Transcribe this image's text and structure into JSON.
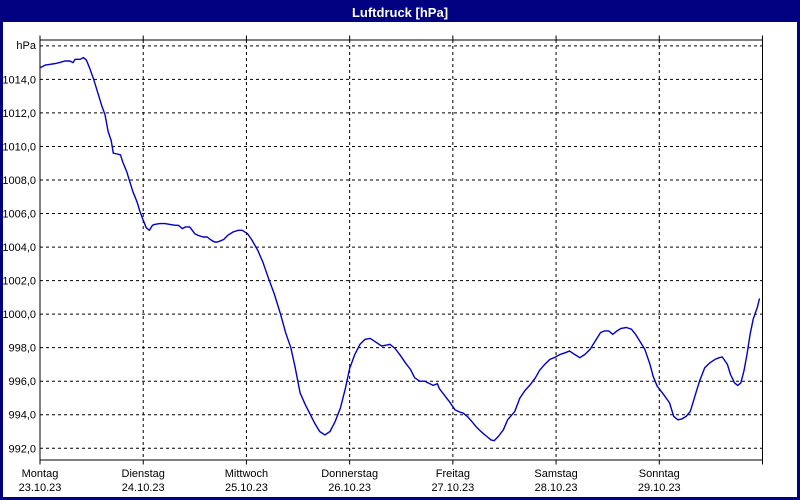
{
  "title": "Luftdruck [hPa]",
  "colors": {
    "title_bg": "#000080",
    "title_fg": "#ffffff",
    "page_border": "#000080",
    "background": "#ffffff",
    "grid": "#000000",
    "axis": "#000000",
    "line": "#0000cc",
    "text": "#000000"
  },
  "y_axis": {
    "unit_label": "hPa",
    "tick_labels": [
      "1014,0",
      "1012,0",
      "1010,0",
      "1008,0",
      "1006,0",
      "1004,0",
      "1002,0",
      "1000,0",
      "998,0",
      "996,0",
      "994,0",
      "992,0"
    ],
    "tick_values": [
      1014,
      1012,
      1010,
      1008,
      1006,
      1004,
      1002,
      1000,
      998,
      996,
      994,
      992
    ],
    "gridline_values": [
      1016,
      1014,
      1012,
      1010,
      1008,
      1006,
      1004,
      1002,
      1000,
      998,
      996,
      994,
      992
    ]
  },
  "x_axis": {
    "days": [
      {
        "name": "Montag",
        "date": "23.10.23"
      },
      {
        "name": "Dienstag",
        "date": "24.10.23"
      },
      {
        "name": "Mittwoch",
        "date": "25.10.23"
      },
      {
        "name": "Donnerstag",
        "date": "26.10.23"
      },
      {
        "name": "Freitag",
        "date": "27.10.23"
      },
      {
        "name": "Samstag",
        "date": "28.10.23"
      },
      {
        "name": "Sonntag",
        "date": "29.10.23"
      }
    ]
  },
  "chart_data": {
    "type": "line",
    "title": "Luftdruck [hPa]",
    "ylabel": "hPa",
    "xlabel": "",
    "ylim": [
      991.3,
      1016.35
    ],
    "xlim_days": [
      0,
      7
    ],
    "grid": "dashed",
    "legend": "none",
    "series": [
      {
        "name": "Luftdruck",
        "color": "#0000cc",
        "points": [
          [
            0.0,
            1014.7
          ],
          [
            0.05,
            1014.85
          ],
          [
            0.1,
            1014.9
          ],
          [
            0.15,
            1014.95
          ],
          [
            0.19,
            1015.0
          ],
          [
            0.24,
            1015.1
          ],
          [
            0.29,
            1015.1
          ],
          [
            0.32,
            1015.0
          ],
          [
            0.34,
            1015.2
          ],
          [
            0.39,
            1015.2
          ],
          [
            0.42,
            1015.3
          ],
          [
            0.45,
            1015.15
          ],
          [
            0.48,
            1014.7
          ],
          [
            0.52,
            1014.0
          ],
          [
            0.56,
            1013.2
          ],
          [
            0.6,
            1012.4
          ],
          [
            0.63,
            1011.9
          ],
          [
            0.66,
            1010.9
          ],
          [
            0.69,
            1010.35
          ],
          [
            0.71,
            1009.6
          ],
          [
            0.75,
            1009.55
          ],
          [
            0.78,
            1009.5
          ],
          [
            0.8,
            1009.1
          ],
          [
            0.84,
            1008.5
          ],
          [
            0.87,
            1007.9
          ],
          [
            0.9,
            1007.3
          ],
          [
            0.94,
            1006.7
          ],
          [
            0.97,
            1006.1
          ],
          [
            1.0,
            1005.6
          ],
          [
            1.03,
            1005.15
          ],
          [
            1.06,
            1005.0
          ],
          [
            1.09,
            1005.3
          ],
          [
            1.11,
            1005.35
          ],
          [
            1.16,
            1005.4
          ],
          [
            1.21,
            1005.4
          ],
          [
            1.26,
            1005.35
          ],
          [
            1.31,
            1005.3
          ],
          [
            1.34,
            1005.3
          ],
          [
            1.38,
            1005.1
          ],
          [
            1.41,
            1005.2
          ],
          [
            1.45,
            1005.2
          ],
          [
            1.5,
            1004.8
          ],
          [
            1.53,
            1004.7
          ],
          [
            1.58,
            1004.6
          ],
          [
            1.62,
            1004.6
          ],
          [
            1.65,
            1004.45
          ],
          [
            1.69,
            1004.3
          ],
          [
            1.72,
            1004.3
          ],
          [
            1.74,
            1004.35
          ],
          [
            1.78,
            1004.45
          ],
          [
            1.82,
            1004.7
          ],
          [
            1.87,
            1004.9
          ],
          [
            1.92,
            1005.0
          ],
          [
            1.96,
            1005.0
          ],
          [
            2.01,
            1004.8
          ],
          [
            2.05,
            1004.45
          ],
          [
            2.11,
            1003.8
          ],
          [
            2.16,
            1003.1
          ],
          [
            2.21,
            1002.2
          ],
          [
            2.27,
            1001.2
          ],
          [
            2.33,
            1000.0
          ],
          [
            2.38,
            998.9
          ],
          [
            2.43,
            998.0
          ],
          [
            2.47,
            996.9
          ],
          [
            2.52,
            995.3
          ],
          [
            2.57,
            994.6
          ],
          [
            2.62,
            994.0
          ],
          [
            2.66,
            993.5
          ],
          [
            2.71,
            993.0
          ],
          [
            2.76,
            992.8
          ],
          [
            2.81,
            993.0
          ],
          [
            2.86,
            993.6
          ],
          [
            2.91,
            994.4
          ],
          [
            2.96,
            995.6
          ],
          [
            3.0,
            996.75
          ],
          [
            3.05,
            997.6
          ],
          [
            3.1,
            998.2
          ],
          [
            3.15,
            998.5
          ],
          [
            3.2,
            998.55
          ],
          [
            3.26,
            998.3
          ],
          [
            3.31,
            998.1
          ],
          [
            3.36,
            998.15
          ],
          [
            3.39,
            998.2
          ],
          [
            3.44,
            997.95
          ],
          [
            3.49,
            997.55
          ],
          [
            3.54,
            997.1
          ],
          [
            3.59,
            996.7
          ],
          [
            3.63,
            996.2
          ],
          [
            3.68,
            996.0
          ],
          [
            3.73,
            996.0
          ],
          [
            3.76,
            995.9
          ],
          [
            3.81,
            995.75
          ],
          [
            3.85,
            995.85
          ],
          [
            3.87,
            995.55
          ],
          [
            3.92,
            995.15
          ],
          [
            3.97,
            994.75
          ],
          [
            4.02,
            994.3
          ],
          [
            4.07,
            994.15
          ],
          [
            4.1,
            994.1
          ],
          [
            4.14,
            993.9
          ],
          [
            4.19,
            993.55
          ],
          [
            4.23,
            993.25
          ],
          [
            4.28,
            992.95
          ],
          [
            4.33,
            992.7
          ],
          [
            4.37,
            992.5
          ],
          [
            4.4,
            992.45
          ],
          [
            4.44,
            992.7
          ],
          [
            4.49,
            993.1
          ],
          [
            4.53,
            993.7
          ],
          [
            4.6,
            994.2
          ],
          [
            4.65,
            995.0
          ],
          [
            4.7,
            995.45
          ],
          [
            4.75,
            995.8
          ],
          [
            4.8,
            996.2
          ],
          [
            4.84,
            996.65
          ],
          [
            4.89,
            997.0
          ],
          [
            4.94,
            997.3
          ],
          [
            4.98,
            997.4
          ],
          [
            5.04,
            997.6
          ],
          [
            5.09,
            997.7
          ],
          [
            5.13,
            997.8
          ],
          [
            5.18,
            997.6
          ],
          [
            5.23,
            997.4
          ],
          [
            5.28,
            997.6
          ],
          [
            5.33,
            997.9
          ],
          [
            5.38,
            998.4
          ],
          [
            5.43,
            998.9
          ],
          [
            5.47,
            999.0
          ],
          [
            5.51,
            999.0
          ],
          [
            5.55,
            998.8
          ],
          [
            5.59,
            999.0
          ],
          [
            5.63,
            999.15
          ],
          [
            5.68,
            999.2
          ],
          [
            5.73,
            999.1
          ],
          [
            5.77,
            998.8
          ],
          [
            5.81,
            998.4
          ],
          [
            5.86,
            997.9
          ],
          [
            5.91,
            997.0
          ],
          [
            5.94,
            996.3
          ],
          [
            5.98,
            995.7
          ],
          [
            6.03,
            995.3
          ],
          [
            6.06,
            995.05
          ],
          [
            6.1,
            994.7
          ],
          [
            6.14,
            993.9
          ],
          [
            6.18,
            993.7
          ],
          [
            6.22,
            993.75
          ],
          [
            6.26,
            993.9
          ],
          [
            6.3,
            994.2
          ],
          [
            6.35,
            995.2
          ],
          [
            6.39,
            996.0
          ],
          [
            6.44,
            996.8
          ],
          [
            6.49,
            997.1
          ],
          [
            6.54,
            997.3
          ],
          [
            6.58,
            997.4
          ],
          [
            6.61,
            997.45
          ],
          [
            6.66,
            997.0
          ],
          [
            6.69,
            996.4
          ],
          [
            6.73,
            995.9
          ],
          [
            6.76,
            995.75
          ],
          [
            6.79,
            995.9
          ],
          [
            6.82,
            996.6
          ],
          [
            6.85,
            997.6
          ],
          [
            6.88,
            998.8
          ],
          [
            6.91,
            999.7
          ],
          [
            6.95,
            1000.4
          ],
          [
            6.97,
            1000.9
          ]
        ]
      }
    ]
  }
}
